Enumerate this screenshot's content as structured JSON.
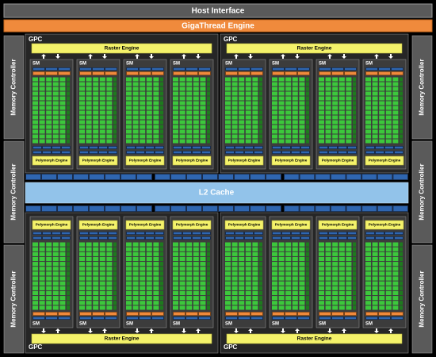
{
  "header": {
    "host_interface": "Host Interface",
    "gigathread_engine": "GigaThread Engine"
  },
  "memory_controllers": [
    "Memory Controller",
    "Memory Controller",
    "Memory Controller",
    "Memory Controller",
    "Memory Controller",
    "Memory Controller"
  ],
  "gpcs": [
    {
      "label": "GPC",
      "raster_engine": "Raster Engine",
      "sms": [
        {
          "label": "SM",
          "polymorph_engine": "Polymorph Engine"
        },
        {
          "label": "SM",
          "polymorph_engine": "Polymorph Engine"
        },
        {
          "label": "SM",
          "polymorph_engine": "Polymorph Engine"
        },
        {
          "label": "SM",
          "polymorph_engine": "Polymorph Engine"
        }
      ]
    },
    {
      "label": "GPC",
      "raster_engine": "Raster Engine",
      "sms": [
        {
          "label": "SM",
          "polymorph_engine": "Polymorph Engine"
        },
        {
          "label": "SM",
          "polymorph_engine": "Polymorph Engine"
        },
        {
          "label": "SM",
          "polymorph_engine": "Polymorph Engine"
        },
        {
          "label": "SM",
          "polymorph_engine": "Polymorph Engine"
        }
      ]
    },
    {
      "label": "GPC",
      "raster_engine": "Raster Engine",
      "sms": [
        {
          "label": "SM",
          "polymorph_engine": "Polymorph Engine"
        },
        {
          "label": "SM",
          "polymorph_engine": "Polymorph Engine"
        },
        {
          "label": "SM",
          "polymorph_engine": "Polymorph Engine"
        },
        {
          "label": "SM",
          "polymorph_engine": "Polymorph Engine"
        }
      ]
    },
    {
      "label": "GPC",
      "raster_engine": "Raster Engine",
      "sms": [
        {
          "label": "SM",
          "polymorph_engine": "Polymorph Engine"
        },
        {
          "label": "SM",
          "polymorph_engine": "Polymorph Engine"
        },
        {
          "label": "SM",
          "polymorph_engine": "Polymorph Engine"
        },
        {
          "label": "SM",
          "polymorph_engine": "Polymorph Engine"
        }
      ]
    }
  ],
  "l2_cache": "L2 Cache"
}
